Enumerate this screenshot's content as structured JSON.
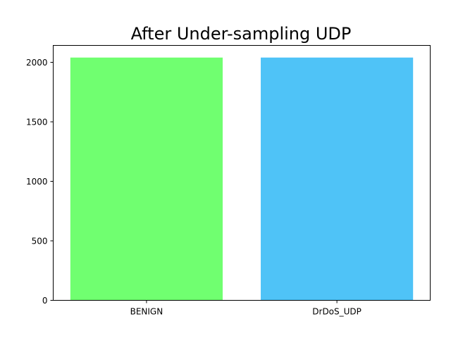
{
  "chart_data": {
    "type": "bar",
    "title": "After Under-sampling UDP",
    "xlabel": "",
    "ylabel": "",
    "categories": [
      "BENIGN",
      "DrDoS_UDP"
    ],
    "values": [
      2040,
      2040
    ],
    "colors": [
      "#70ff70",
      "#4fc3f7"
    ],
    "ylim": [
      0,
      2142
    ],
    "yticks": [
      0,
      500,
      1000,
      1500,
      2000
    ],
    "grid": false
  }
}
